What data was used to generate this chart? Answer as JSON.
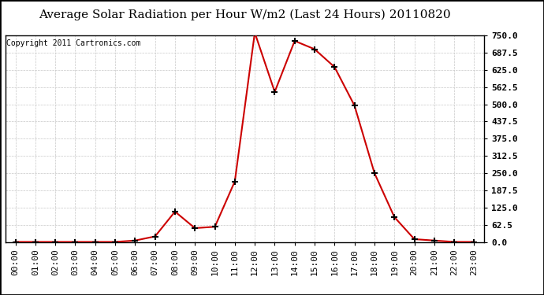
{
  "title": "Average Solar Radiation per Hour W/m2 (Last 24 Hours) 20110820",
  "copyright": "Copyright 2011 Cartronics.com",
  "x_labels": [
    "00:00",
    "01:00",
    "02:00",
    "03:00",
    "04:00",
    "05:00",
    "06:00",
    "07:00",
    "08:00",
    "09:00",
    "10:00",
    "11:00",
    "12:00",
    "13:00",
    "14:00",
    "15:00",
    "16:00",
    "17:00",
    "18:00",
    "19:00",
    "20:00",
    "21:00",
    "22:00",
    "23:00"
  ],
  "y_values": [
    0,
    0,
    0,
    0,
    0,
    0,
    5,
    20,
    110,
    50,
    55,
    220,
    760,
    545,
    730,
    700,
    635,
    495,
    250,
    90,
    10,
    5,
    0,
    0
  ],
  "ylim": [
    0,
    750
  ],
  "yticks": [
    0.0,
    62.5,
    125.0,
    187.5,
    250.0,
    312.5,
    375.0,
    437.5,
    500.0,
    562.5,
    625.0,
    687.5,
    750.0
  ],
  "ytick_labels": [
    "0.0",
    "62.5",
    "125.0",
    "187.5",
    "250.0",
    "312.5",
    "375.0",
    "437.5",
    "500.0",
    "562.5",
    "625.0",
    "687.5",
    "750.0"
  ],
  "line_color": "#cc0000",
  "marker_color": "#000000",
  "plot_bg_color": "#ffffff",
  "fig_bg_color": "#ffffff",
  "grid_color": "#c8c8c8",
  "title_fontsize": 11,
  "copyright_fontsize": 7,
  "tick_fontsize": 8,
  "ytick_fontsize": 8
}
